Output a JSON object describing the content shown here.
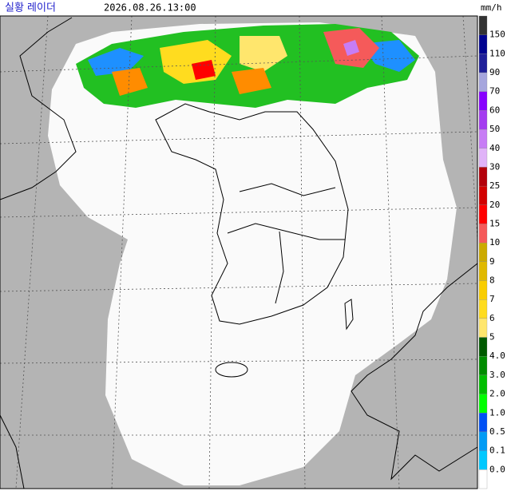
{
  "header": {
    "title": "실황 레이더",
    "time": "2026.08.26.13:00"
  },
  "legend": {
    "unit": "mm/h",
    "labels": [
      "150",
      "110",
      "90",
      "70",
      "60",
      "50",
      "40",
      "30",
      "25",
      "20",
      "15",
      "10",
      "9",
      "8",
      "7",
      "6",
      "5",
      "4.0",
      "3.0",
      "2.0",
      "1.0",
      "0.5",
      "0.1",
      "0.0"
    ],
    "colors": [
      "#333333",
      "#000390",
      "#1f1f99",
      "#a5a5dd",
      "#8700ff",
      "#a43cf0",
      "#c77df5",
      "#e0b3f8",
      "#b3000a",
      "#d20000",
      "#ff0000",
      "#f55a5a",
      "#ccaa00",
      "#e0b900",
      "#f9cd00",
      "#ffdc1f",
      "#ffe66d",
      "#005a00",
      "#008c00",
      "#00be00",
      "#00ff00",
      "#0050f5",
      "#009bf5",
      "#00c8ff",
      "#ffffff"
    ]
  }
}
